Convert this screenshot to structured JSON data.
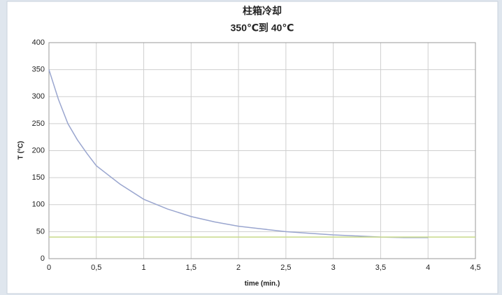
{
  "chart_data": {
    "type": "line",
    "title": "柱箱冷却",
    "subtitle": "350℃到 40℃",
    "x_label": "time (min.)",
    "y_label": "T (°C)",
    "series": [
      {
        "color": "#9aa6cf",
        "x": [
          0,
          0.1,
          0.2,
          0.3,
          0.4,
          0.5,
          0.75,
          1,
          1.25,
          1.5,
          1.75,
          2,
          2.25,
          2.5,
          2.75,
          3,
          3.25,
          3.5,
          3.75,
          4
        ],
        "values": [
          350,
          295,
          250,
          220,
          195,
          172,
          138,
          110,
          92,
          78,
          68,
          60,
          55,
          50,
          47,
          44,
          42,
          40,
          39,
          39
        ]
      },
      {
        "color": "#c8d98a",
        "x": [
          0,
          4.5
        ],
        "values": [
          40,
          40
        ]
      }
    ],
    "xlim": [
      0,
      4.5
    ],
    "xticks": [
      0,
      {
        "value": 0.5,
        "label": "0,5"
      },
      1,
      {
        "value": 1.5,
        "label": "1,5"
      },
      2,
      {
        "value": 2.5,
        "label": "2,5"
      },
      3,
      {
        "value": 3.5,
        "label": "3,5"
      },
      4,
      {
        "value": 4.5,
        "label": "4,5"
      }
    ],
    "ylim": [
      0,
      400
    ],
    "yticks": [
      0,
      50,
      100,
      150,
      200,
      250,
      300,
      350,
      400
    ],
    "grid": true
  }
}
